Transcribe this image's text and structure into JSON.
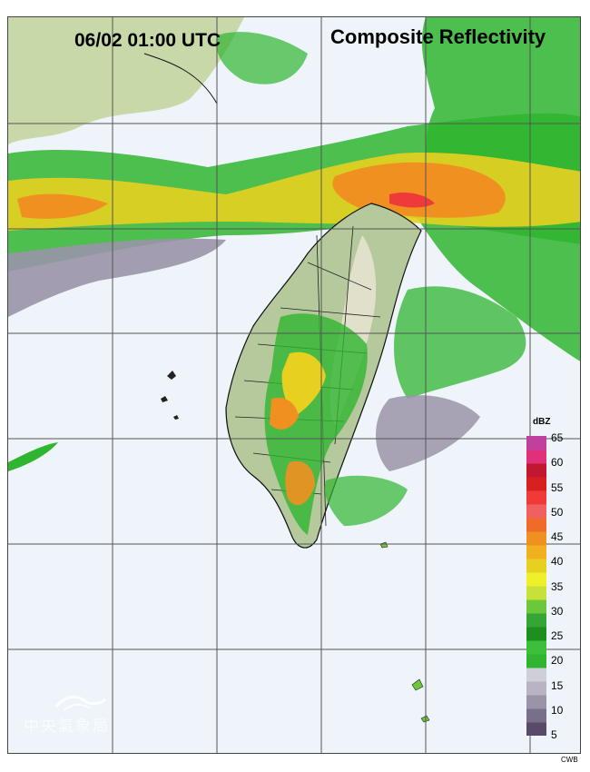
{
  "header": {
    "timestamp": "06/02 01:00 UTC",
    "product_title": "Composite Reflectivity"
  },
  "legend": {
    "unit": "dBZ",
    "ticks": [
      "65",
      "60",
      "55",
      "50",
      "45",
      "40",
      "35",
      "30",
      "25",
      "20",
      "15",
      "10",
      "5"
    ],
    "colors": [
      "#5a4a6a",
      "#78708a",
      "#9a94a8",
      "#b8b4c4",
      "#cfcfd8",
      "#2fb52f",
      "#3cc03c",
      "#1e8f1e",
      "#35a535",
      "#6cc83a",
      "#c8e03a",
      "#f0f02a",
      "#e8d020",
      "#f0b020",
      "#f09020",
      "#f06a2a",
      "#f06060",
      "#f03a3a",
      "#d82020",
      "#c01830",
      "#e0307a",
      "#c040a0"
    ]
  },
  "footer": {
    "source": "CWB",
    "watermark": "中央氣象局"
  },
  "map": {
    "sea_color": "#eef4fa",
    "land_color": "#b5c99c"
  }
}
